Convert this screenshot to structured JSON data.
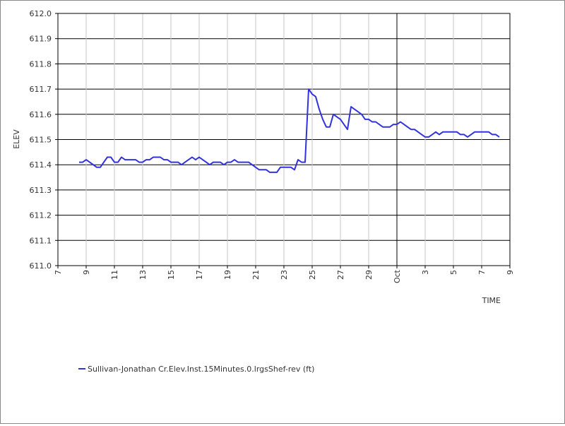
{
  "chart_data": {
    "type": "line",
    "xlabel": "TIME",
    "ylabel": "ELEV",
    "ylim": [
      611.0,
      612.0
    ],
    "y_ticks": [
      611.0,
      611.1,
      611.2,
      611.3,
      611.4,
      611.5,
      611.6,
      611.7,
      611.8,
      611.9,
      612.0
    ],
    "y_tick_labels": [
      "611.0",
      "611.1",
      "611.2",
      "611.3",
      "611.4",
      "611.5",
      "611.6",
      "611.7",
      "611.8",
      "611.9",
      "612.0"
    ],
    "xlim": [
      "Sep 7",
      "Oct 9"
    ],
    "x_ticks": [
      {
        "date": "Sep 7",
        "label": "7"
      },
      {
        "date": "Sep 9",
        "label": "9"
      },
      {
        "date": "Sep 11",
        "label": "11"
      },
      {
        "date": "Sep 13",
        "label": "13"
      },
      {
        "date": "Sep 15",
        "label": "15"
      },
      {
        "date": "Sep 17",
        "label": "17"
      },
      {
        "date": "Sep 19",
        "label": "19"
      },
      {
        "date": "Sep 21",
        "label": "21"
      },
      {
        "date": "Sep 23",
        "label": "23"
      },
      {
        "date": "Sep 25",
        "label": "25"
      },
      {
        "date": "Sep 27",
        "label": "27"
      },
      {
        "date": "Sep 29",
        "label": "29"
      },
      {
        "date": "Oct 1",
        "label": "Oct"
      },
      {
        "date": "Oct 3",
        "label": "3"
      },
      {
        "date": "Oct 5",
        "label": "5"
      },
      {
        "date": "Oct 7",
        "label": "7"
      },
      {
        "date": "Oct 9",
        "label": "9"
      }
    ],
    "grid": true,
    "legend_position": "bottom-left",
    "series": [
      {
        "name": "Sullivan-Jonathan Cr.Elev.Inst.15Minutes.0.lrgsShef-rev (ft)",
        "color": "#3333dd",
        "points": [
          [
            "Sep 8 12:00",
            611.41
          ],
          [
            "Sep 8 18:00",
            611.41
          ],
          [
            "Sep 9 00:00",
            611.42
          ],
          [
            "Sep 9 06:00",
            611.41
          ],
          [
            "Sep 9 12:00",
            611.4
          ],
          [
            "Sep 9 18:00",
            611.39
          ],
          [
            "Sep 10 00:00",
            611.39
          ],
          [
            "Sep 10 06:00",
            611.41
          ],
          [
            "Sep 10 12:00",
            611.43
          ],
          [
            "Sep 10 18:00",
            611.43
          ],
          [
            "Sep 11 00:00",
            611.41
          ],
          [
            "Sep 11 06:00",
            611.41
          ],
          [
            "Sep 11 12:00",
            611.43
          ],
          [
            "Sep 11 18:00",
            611.42
          ],
          [
            "Sep 12 00:00",
            611.42
          ],
          [
            "Sep 12 12:00",
            611.42
          ],
          [
            "Sep 12 18:00",
            611.41
          ],
          [
            "Sep 13 00:00",
            611.41
          ],
          [
            "Sep 13 06:00",
            611.42
          ],
          [
            "Sep 13 12:00",
            611.42
          ],
          [
            "Sep 13 18:00",
            611.43
          ],
          [
            "Sep 14 06:00",
            611.43
          ],
          [
            "Sep 14 12:00",
            611.42
          ],
          [
            "Sep 14 18:00",
            611.42
          ],
          [
            "Sep 15 00:00",
            611.41
          ],
          [
            "Sep 15 12:00",
            611.41
          ],
          [
            "Sep 15 18:00",
            611.4
          ],
          [
            "Sep 16 00:00",
            611.41
          ],
          [
            "Sep 16 06:00",
            611.42
          ],
          [
            "Sep 16 12:00",
            611.43
          ],
          [
            "Sep 16 18:00",
            611.42
          ],
          [
            "Sep 17 00:00",
            611.43
          ],
          [
            "Sep 17 06:00",
            611.42
          ],
          [
            "Sep 17 12:00",
            611.41
          ],
          [
            "Sep 17 18:00",
            611.4
          ],
          [
            "Sep 18 00:00",
            611.41
          ],
          [
            "Sep 18 12:00",
            611.41
          ],
          [
            "Sep 18 18:00",
            611.4
          ],
          [
            "Sep 19 00:00",
            611.41
          ],
          [
            "Sep 19 06:00",
            611.41
          ],
          [
            "Sep 19 12:00",
            611.42
          ],
          [
            "Sep 19 18:00",
            611.41
          ],
          [
            "Sep 20 12:00",
            611.41
          ],
          [
            "Sep 21 00:00",
            611.39
          ],
          [
            "Sep 21 06:00",
            611.38
          ],
          [
            "Sep 21 18:00",
            611.38
          ],
          [
            "Sep 22 00:00",
            611.37
          ],
          [
            "Sep 22 12:00",
            611.37
          ],
          [
            "Sep 22 18:00",
            611.39
          ],
          [
            "Sep 23 12:00",
            611.39
          ],
          [
            "Sep 23 18:00",
            611.38
          ],
          [
            "Sep 24 00:00",
            611.42
          ],
          [
            "Sep 24 06:00",
            611.41
          ],
          [
            "Sep 24 12:00",
            611.41
          ],
          [
            "Sep 24 18:00",
            611.7
          ],
          [
            "Sep 25 00:00",
            611.68
          ],
          [
            "Sep 25 06:00",
            611.67
          ],
          [
            "Sep 25 12:00",
            611.62
          ],
          [
            "Sep 25 18:00",
            611.58
          ],
          [
            "Sep 26 00:00",
            611.55
          ],
          [
            "Sep 26 06:00",
            611.55
          ],
          [
            "Sep 26 12:00",
            611.6
          ],
          [
            "Sep 26 18:00",
            611.59
          ],
          [
            "Sep 27 00:00",
            611.58
          ],
          [
            "Sep 27 06:00",
            611.56
          ],
          [
            "Sep 27 12:00",
            611.54
          ],
          [
            "Sep 27 18:00",
            611.63
          ],
          [
            "Sep 28 00:00",
            611.62
          ],
          [
            "Sep 28 06:00",
            611.61
          ],
          [
            "Sep 28 12:00",
            611.6
          ],
          [
            "Sep 28 18:00",
            611.58
          ],
          [
            "Sep 29 00:00",
            611.58
          ],
          [
            "Sep 29 06:00",
            611.57
          ],
          [
            "Sep 29 12:00",
            611.57
          ],
          [
            "Sep 29 18:00",
            611.56
          ],
          [
            "Sep 30 00:00",
            611.55
          ],
          [
            "Sep 30 12:00",
            611.55
          ],
          [
            "Sep 30 18:00",
            611.56
          ],
          [
            "Oct 1 00:00",
            611.56
          ],
          [
            "Oct 1 06:00",
            611.57
          ],
          [
            "Oct 1 12:00",
            611.56
          ],
          [
            "Oct 1 18:00",
            611.55
          ],
          [
            "Oct 2 00:00",
            611.54
          ],
          [
            "Oct 2 06:00",
            611.54
          ],
          [
            "Oct 2 12:00",
            611.53
          ],
          [
            "Oct 2 18:00",
            611.52
          ],
          [
            "Oct 3 00:00",
            611.51
          ],
          [
            "Oct 3 06:00",
            611.51
          ],
          [
            "Oct 3 12:00",
            611.52
          ],
          [
            "Oct 3 18:00",
            611.53
          ],
          [
            "Oct 4 00:00",
            611.52
          ],
          [
            "Oct 4 06:00",
            611.53
          ],
          [
            "Oct 5 00:00",
            611.53
          ],
          [
            "Oct 5 06:00",
            611.53
          ],
          [
            "Oct 5 12:00",
            611.52
          ],
          [
            "Oct 5 18:00",
            611.52
          ],
          [
            "Oct 6 00:00",
            611.51
          ],
          [
            "Oct 6 06:00",
            611.52
          ],
          [
            "Oct 6 12:00",
            611.53
          ],
          [
            "Oct 7 12:00",
            611.53
          ],
          [
            "Oct 7 18:00",
            611.52
          ],
          [
            "Oct 8 00:00",
            611.52
          ],
          [
            "Oct 8 06:00",
            611.51
          ]
        ]
      }
    ]
  }
}
